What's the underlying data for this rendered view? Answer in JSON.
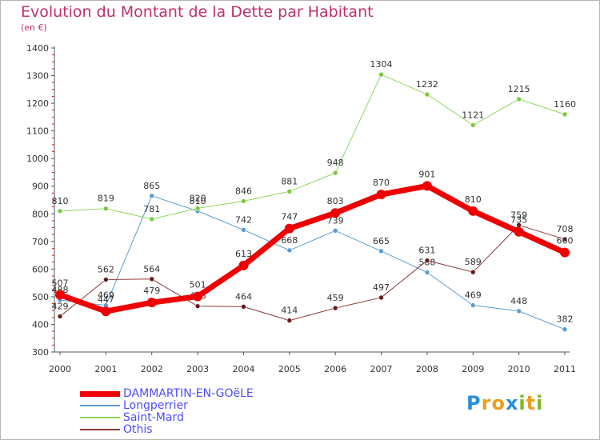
{
  "title": "Evolution du Montant de la Dette par Habitant",
  "unit": "(en €)",
  "logo": {
    "text": "Proxiti",
    "letters": [
      {
        "ch": "P",
        "color": "#2a8fd6"
      },
      {
        "ch": "r",
        "color": "#e8a020"
      },
      {
        "ch": "o",
        "color": "#e8a020"
      },
      {
        "ch": "x",
        "color": "#2a8fd6"
      },
      {
        "ch": "i",
        "color": "#7ab829"
      },
      {
        "ch": "t",
        "color": "#e8a020"
      },
      {
        "ch": "i",
        "color": "#7ab829"
      }
    ]
  },
  "chart_data": {
    "type": "line",
    "title": "Evolution du Montant de la Dette par Habitant",
    "ylabel": "(en €)",
    "xlabel": "",
    "ylim": [
      300,
      1400
    ],
    "yticks": [
      300,
      400,
      500,
      600,
      700,
      800,
      900,
      1000,
      1100,
      1200,
      1300,
      1400
    ],
    "grid": false,
    "legend_position": "bottom-left",
    "categories": [
      "2000",
      "2001",
      "2002",
      "2003",
      "2004",
      "2005",
      "2006",
      "2007",
      "2008",
      "2009",
      "2010",
      "2011"
    ],
    "series": [
      {
        "name": "Longperrier",
        "color": "#5b9bd5",
        "marker": "#5b9bd5",
        "width": 1,
        "values": [
          488,
          469,
          865,
          810,
          742,
          668,
          739,
          665,
          588,
          469,
          448,
          382
        ]
      },
      {
        "name": "Saint-Mard",
        "color": "#8fd65b",
        "marker": "#7cc840",
        "width": 1,
        "values": [
          810,
          819,
          781,
          820,
          846,
          881,
          948,
          1304,
          1232,
          1121,
          1215,
          1160
        ]
      },
      {
        "name": "Othis",
        "color": "#8a3a3a",
        "marker": "#6b1a1a",
        "width": 1,
        "values": [
          429,
          562,
          564,
          466,
          464,
          414,
          459,
          497,
          631,
          589,
          759,
          708
        ]
      },
      {
        "name": "DAMMARTIN-EN-GOëLE",
        "color": "#ee0000",
        "marker": "#ee0000",
        "width": 7,
        "values": [
          507,
          447,
          479,
          501,
          613,
          747,
          803,
          870,
          901,
          810,
          735,
          660
        ]
      }
    ],
    "legend_order": [
      "DAMMARTIN-EN-GOëLE",
      "Longperrier",
      "Saint-Mard",
      "Othis"
    ]
  }
}
